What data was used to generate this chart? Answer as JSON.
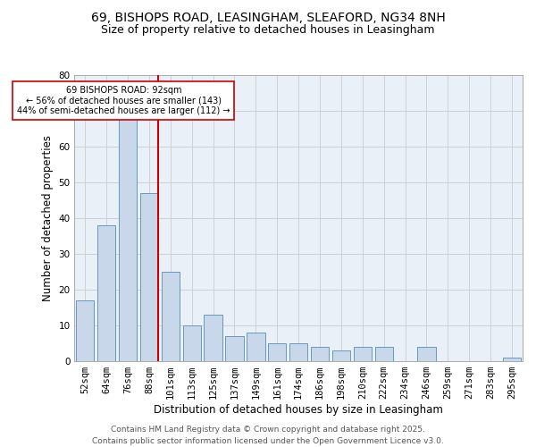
{
  "title_line1": "69, BISHOPS ROAD, LEASINGHAM, SLEAFORD, NG34 8NH",
  "title_line2": "Size of property relative to detached houses in Leasingham",
  "xlabel": "Distribution of detached houses by size in Leasingham",
  "ylabel": "Number of detached properties",
  "categories": [
    "52sqm",
    "64sqm",
    "76sqm",
    "88sqm",
    "101sqm",
    "113sqm",
    "125sqm",
    "137sqm",
    "149sqm",
    "161sqm",
    "174sqm",
    "186sqm",
    "198sqm",
    "210sqm",
    "222sqm",
    "234sqm",
    "246sqm",
    "259sqm",
    "271sqm",
    "283sqm",
    "295sqm"
  ],
  "values": [
    17,
    38,
    68,
    47,
    25,
    10,
    13,
    7,
    8,
    5,
    5,
    4,
    3,
    4,
    4,
    0,
    4,
    0,
    0,
    0,
    1
  ],
  "bar_color": "#c8d8ea",
  "bar_edgecolor": "#6699bb",
  "vline_index": 3,
  "vline_color": "#cc0000",
  "annotation_text": "69 BISHOPS ROAD: 92sqm\n← 56% of detached houses are smaller (143)\n44% of semi-detached houses are larger (112) →",
  "annotation_box_facecolor": "#ffffff",
  "annotation_box_edgecolor": "#cc0000",
  "ylim": [
    0,
    80
  ],
  "yticks": [
    0,
    10,
    20,
    30,
    40,
    50,
    60,
    70,
    80
  ],
  "grid_color": "#cccccc",
  "bg_color": "#eaf0f8",
  "footer": "Contains HM Land Registry data © Crown copyright and database right 2025.\nContains public sector information licensed under the Open Government Licence v3.0.",
  "title_fontsize": 10,
  "subtitle_fontsize": 9,
  "axis_label_fontsize": 8.5,
  "tick_fontsize": 7.5,
  "footer_fontsize": 6.5
}
